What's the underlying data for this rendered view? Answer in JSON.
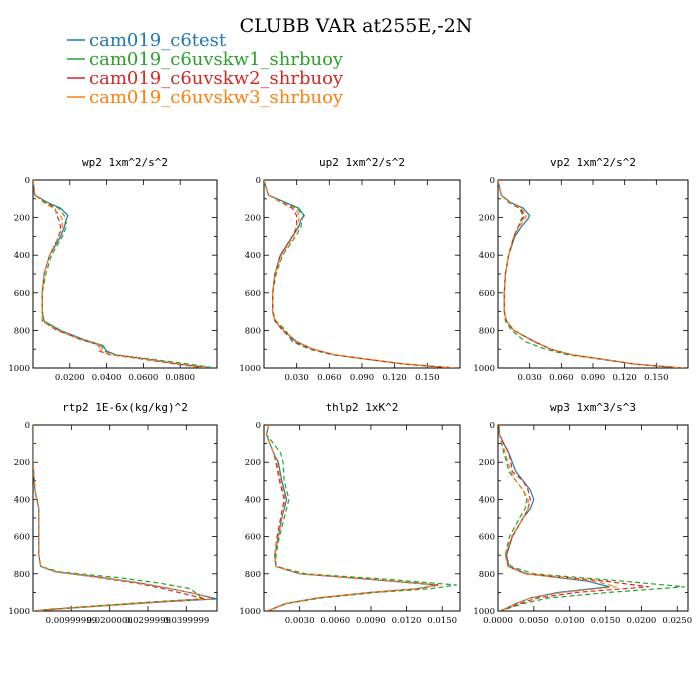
{
  "figure": {
    "title": "CLUBB VAR at255E,-2N",
    "series_colors": [
      "#1f77b4",
      "#2ca02c",
      "#d62728",
      "#ff7f0e"
    ],
    "series_dash": [
      "",
      "5,3",
      "5,3",
      "5,3"
    ]
  },
  "chart_data": [
    {
      "type": "line",
      "title": "wp2  1xm^2/s^2",
      "xlim": [
        0,
        0.1
      ],
      "ylim": [
        0,
        1000
      ],
      "y_inverted": true,
      "xticks": [
        0.02,
        0.04,
        0.06,
        0.08
      ],
      "xtick_labels": [
        "0.0200",
        "0.0400",
        "0.0600",
        "0.0800"
      ],
      "yticks": [
        0,
        200,
        400,
        600,
        800,
        1000
      ],
      "ytick_labels": [
        "0",
        "200",
        "400",
        "600",
        "800",
        "1000"
      ],
      "y": [
        0,
        80,
        120,
        150,
        190,
        210,
        250,
        300,
        400,
        500,
        600,
        700,
        750,
        800,
        850,
        880,
        910,
        930,
        950,
        980,
        1000
      ],
      "series": [
        {
          "name": "cam019_c6test",
          "values": [
            0.0,
            0.001,
            0.008,
            0.015,
            0.019,
            0.018,
            0.017,
            0.015,
            0.009,
            0.006,
            0.005,
            0.005,
            0.006,
            0.015,
            0.028,
            0.038,
            0.04,
            0.045,
            0.06,
            0.08,
            0.098
          ]
        },
        {
          "name": "cam019_c6uvskw1_shrbuoy",
          "values": [
            0.0,
            0.001,
            0.007,
            0.014,
            0.017,
            0.018,
            0.018,
            0.016,
            0.01,
            0.007,
            0.005,
            0.005,
            0.006,
            0.014,
            0.026,
            0.037,
            0.039,
            0.045,
            0.062,
            0.085,
            0.099
          ]
        },
        {
          "name": "cam019_c6uvskw2_shrbuoy",
          "values": [
            0.0,
            0.001,
            0.006,
            0.012,
            0.013,
            0.014,
            0.015,
            0.014,
            0.009,
            0.006,
            0.005,
            0.005,
            0.005,
            0.013,
            0.027,
            0.036,
            0.036,
            0.042,
            0.058,
            0.078,
            0.094
          ]
        },
        {
          "name": "cam019_c6uvskw3_shrbuoy",
          "values": [
            0.0,
            0.001,
            0.006,
            0.011,
            0.015,
            0.016,
            0.016,
            0.014,
            0.009,
            0.006,
            0.005,
            0.005,
            0.005,
            0.014,
            0.027,
            0.037,
            0.037,
            0.043,
            0.06,
            0.08,
            0.095
          ]
        }
      ]
    },
    {
      "type": "line",
      "title": "up2  1xm^2/s^2",
      "xlim": [
        0,
        0.18
      ],
      "ylim": [
        0,
        1000
      ],
      "y_inverted": true,
      "xticks": [
        0.03,
        0.06,
        0.09,
        0.12,
        0.15
      ],
      "xtick_labels": [
        "0.030",
        "0.060",
        "0.090",
        "0.120",
        "0.150"
      ],
      "yticks": [
        0,
        200,
        400,
        600,
        800,
        1000
      ],
      "ytick_labels": [
        "0",
        "200",
        "400",
        "600",
        "800",
        "1000"
      ],
      "y": [
        0,
        80,
        120,
        150,
        190,
        210,
        250,
        300,
        400,
        500,
        600,
        700,
        750,
        800,
        860,
        900,
        930,
        950,
        980,
        1000
      ],
      "series": [
        {
          "name": "cam019_c6test",
          "values": [
            0.0,
            0.004,
            0.02,
            0.032,
            0.037,
            0.034,
            0.032,
            0.026,
            0.015,
            0.01,
            0.008,
            0.008,
            0.01,
            0.018,
            0.03,
            0.045,
            0.065,
            0.09,
            0.13,
            0.175
          ]
        },
        {
          "name": "cam019_c6uvskw1_shrbuoy",
          "values": [
            0.0,
            0.004,
            0.018,
            0.03,
            0.036,
            0.035,
            0.034,
            0.029,
            0.017,
            0.011,
            0.008,
            0.008,
            0.011,
            0.02,
            0.026,
            0.042,
            0.063,
            0.09,
            0.13,
            0.175
          ]
        },
        {
          "name": "cam019_c6uvskw2_shrbuoy",
          "values": [
            0.0,
            0.004,
            0.016,
            0.026,
            0.03,
            0.03,
            0.03,
            0.026,
            0.015,
            0.01,
            0.008,
            0.008,
            0.01,
            0.017,
            0.028,
            0.044,
            0.064,
            0.09,
            0.13,
            0.175
          ]
        },
        {
          "name": "cam019_c6uvskw3_shrbuoy",
          "values": [
            0.0,
            0.004,
            0.017,
            0.028,
            0.033,
            0.032,
            0.031,
            0.027,
            0.016,
            0.01,
            0.008,
            0.008,
            0.01,
            0.018,
            0.029,
            0.045,
            0.065,
            0.09,
            0.13,
            0.175
          ]
        }
      ]
    },
    {
      "type": "line",
      "title": "vp2  1xm^2/s^2",
      "xlim": [
        0,
        0.18
      ],
      "ylim": [
        0,
        1000
      ],
      "y_inverted": true,
      "xticks": [
        0.03,
        0.06,
        0.09,
        0.12,
        0.15
      ],
      "xtick_labels": [
        "0.030",
        "0.060",
        "0.090",
        "0.120",
        "0.150"
      ],
      "yticks": [
        0,
        200,
        400,
        600,
        800,
        1000
      ],
      "ytick_labels": [
        "0",
        "200",
        "400",
        "600",
        "800",
        "1000"
      ],
      "y": [
        0,
        80,
        120,
        150,
        190,
        210,
        250,
        300,
        400,
        500,
        600,
        700,
        750,
        800,
        860,
        900,
        930,
        950,
        980,
        1000
      ],
      "series": [
        {
          "name": "cam019_c6test",
          "values": [
            0.0,
            0.003,
            0.012,
            0.024,
            0.03,
            0.028,
            0.022,
            0.016,
            0.01,
            0.007,
            0.006,
            0.006,
            0.008,
            0.015,
            0.035,
            0.05,
            0.07,
            0.095,
            0.13,
            0.175
          ]
        },
        {
          "name": "cam019_c6uvskw1_shrbuoy",
          "values": [
            0.0,
            0.003,
            0.01,
            0.02,
            0.024,
            0.022,
            0.019,
            0.015,
            0.01,
            0.007,
            0.006,
            0.006,
            0.007,
            0.013,
            0.026,
            0.045,
            0.066,
            0.093,
            0.13,
            0.175
          ]
        },
        {
          "name": "cam019_c6uvskw2_shrbuoy",
          "values": [
            0.0,
            0.003,
            0.011,
            0.021,
            0.025,
            0.023,
            0.019,
            0.015,
            0.01,
            0.007,
            0.006,
            0.006,
            0.008,
            0.015,
            0.034,
            0.05,
            0.07,
            0.095,
            0.13,
            0.175
          ]
        },
        {
          "name": "cam019_c6uvskw3_shrbuoy",
          "values": [
            0.0,
            0.003,
            0.011,
            0.022,
            0.027,
            0.025,
            0.02,
            0.015,
            0.01,
            0.007,
            0.006,
            0.006,
            0.008,
            0.015,
            0.034,
            0.05,
            0.07,
            0.095,
            0.13,
            0.175
          ]
        }
      ]
    },
    {
      "type": "line",
      "title": "rtp2  1E-6x(kg/kg)^2",
      "xlim": [
        0,
        4.8e-05
      ],
      "ylim": [
        0,
        1000
      ],
      "y_inverted": true,
      "xticks": [
        1e-05,
        2e-05,
        3e-05,
        4e-05
      ],
      "xtick_labels": [
        "0.00999999",
        "0.0200000",
        "0.0299999",
        "0.0399999"
      ],
      "yticks": [
        0,
        200,
        400,
        600,
        800,
        1000
      ],
      "ytick_labels": [
        "0",
        "200",
        "400",
        "600",
        "800",
        "1000"
      ],
      "y": [
        0,
        200,
        350,
        400,
        450,
        500,
        600,
        700,
        760,
        790,
        820,
        850,
        880,
        910,
        935,
        950,
        970,
        990,
        1000
      ],
      "series": [
        {
          "name": "cam019_c6test",
          "values": [
            0.0,
            0.0,
            5e-07,
            1e-06,
            1.5e-06,
            1.5e-06,
            1.5e-06,
            1.5e-06,
            2e-06,
            6e-06,
            1.8e-05,
            2.8e-05,
            3.6e-05,
            4.3e-05,
            4.8e-05,
            3.5e-05,
            2e-05,
            6e-06,
            0.0
          ]
        },
        {
          "name": "cam019_c6uvskw1_shrbuoy",
          "values": [
            0.0,
            0.0,
            5e-07,
            1e-06,
            1.5e-06,
            1.5e-06,
            1.5e-06,
            1.5e-06,
            2e-06,
            7e-06,
            2.2e-05,
            3.3e-05,
            4.1e-05,
            4.3e-05,
            4.4e-05,
            3.2e-05,
            1.8e-05,
            5e-06,
            0.0
          ]
        },
        {
          "name": "cam019_c6uvskw2_shrbuoy",
          "values": [
            0.0,
            0.0,
            5e-07,
            1e-06,
            1.5e-06,
            1.5e-06,
            1.5e-06,
            1.5e-06,
            2e-06,
            6e-06,
            1.7e-05,
            2.7e-05,
            3.4e-05,
            4e-05,
            4.5e-05,
            3.3e-05,
            1.9e-05,
            5e-06,
            0.0
          ]
        },
        {
          "name": "cam019_c6uvskw3_shrbuoy",
          "values": [
            0.0,
            0.0,
            5e-07,
            1e-06,
            1.5e-06,
            1.5e-06,
            1.5e-06,
            1.5e-06,
            2e-06,
            6e-06,
            1.8e-05,
            2.8e-05,
            3.6e-05,
            4.3e-05,
            4.7e-05,
            3.4e-05,
            2e-05,
            6e-06,
            0.0
          ]
        }
      ]
    },
    {
      "type": "line",
      "title": "thlp2  1xK^2",
      "xlim": [
        0,
        0.0165
      ],
      "ylim": [
        0,
        1000
      ],
      "y_inverted": true,
      "xticks": [
        0.003,
        0.006,
        0.009,
        0.012,
        0.015
      ],
      "xtick_labels": [
        "0.0030",
        "0.0060",
        "0.0090",
        "0.0120",
        "0.0150"
      ],
      "yticks": [
        0,
        200,
        400,
        600,
        800,
        1000
      ],
      "ytick_labels": [
        "0",
        "200",
        "400",
        "600",
        "800",
        "1000"
      ],
      "y": [
        0,
        50,
        100,
        150,
        200,
        300,
        400,
        500,
        600,
        700,
        760,
        800,
        830,
        860,
        880,
        900,
        930,
        960,
        1000
      ],
      "series": [
        {
          "name": "cam019_c6test",
          "values": [
            0.0004,
            0.0002,
            0.0005,
            0.0008,
            0.0012,
            0.0015,
            0.0019,
            0.0015,
            0.0012,
            0.0009,
            0.001,
            0.003,
            0.009,
            0.0145,
            0.013,
            0.009,
            0.0045,
            0.0018,
            0.0003
          ]
        },
        {
          "name": "cam019_c6uvskw1_shrbuoy",
          "values": [
            0.0004,
            0.0002,
            0.0008,
            0.0014,
            0.0016,
            0.0017,
            0.0021,
            0.0017,
            0.0013,
            0.001,
            0.001,
            0.0035,
            0.0105,
            0.0162,
            0.014,
            0.0095,
            0.0048,
            0.0019,
            0.0003
          ]
        },
        {
          "name": "cam019_c6uvskw2_shrbuoy",
          "values": [
            0.0004,
            0.0002,
            0.0005,
            0.0008,
            0.001,
            0.0013,
            0.0017,
            0.0014,
            0.0011,
            0.0009,
            0.001,
            0.003,
            0.009,
            0.0148,
            0.0128,
            0.009,
            0.0045,
            0.0018,
            0.0003
          ]
        },
        {
          "name": "cam019_c6uvskw3_shrbuoy",
          "values": [
            0.0004,
            0.0002,
            0.0005,
            0.0008,
            0.0011,
            0.0014,
            0.0018,
            0.0015,
            0.0012,
            0.0009,
            0.001,
            0.003,
            0.0092,
            0.0145,
            0.013,
            0.009,
            0.0045,
            0.0018,
            0.0003
          ]
        }
      ]
    },
    {
      "type": "line",
      "title": "wp3  1xm^3/s^3",
      "xlim": [
        0,
        0.0265
      ],
      "ylim": [
        0,
        1000
      ],
      "y_inverted": true,
      "xticks": [
        0,
        0.005,
        0.01,
        0.015,
        0.02,
        0.025
      ],
      "xtick_labels": [
        "0.0000",
        "0.0050",
        "0.0100",
        "0.0150",
        "0.0200",
        "0.0250"
      ],
      "yticks": [
        0,
        200,
        400,
        600,
        800,
        1000
      ],
      "ytick_labels": [
        "0",
        "200",
        "400",
        "600",
        "800",
        "1000"
      ],
      "y": [
        0,
        50,
        100,
        150,
        200,
        250,
        300,
        350,
        400,
        450,
        500,
        600,
        700,
        760,
        800,
        840,
        870,
        900,
        930,
        960,
        1000
      ],
      "series": [
        {
          "name": "cam019_c6test",
          "values": [
            0.0002,
            0.0002,
            0.0008,
            0.0015,
            0.002,
            0.0025,
            0.0035,
            0.0045,
            0.005,
            0.0045,
            0.0035,
            0.002,
            0.0012,
            0.0015,
            0.004,
            0.0125,
            0.0155,
            0.0085,
            0.0045,
            0.0025,
            0.0003
          ]
        },
        {
          "name": "cam019_c6uvskw1_shrbuoy",
          "values": [
            0.0002,
            0.0002,
            0.0005,
            0.0008,
            0.0012,
            0.0015,
            0.0025,
            0.0035,
            0.004,
            0.0038,
            0.003,
            0.0016,
            0.001,
            0.0018,
            0.005,
            0.0175,
            0.026,
            0.0155,
            0.007,
            0.0035,
            0.0003
          ]
        },
        {
          "name": "cam019_c6uvskw2_shrbuoy",
          "values": [
            0.0002,
            0.0002,
            0.0008,
            0.0015,
            0.0018,
            0.002,
            0.0035,
            0.0042,
            0.0045,
            0.0042,
            0.0035,
            0.002,
            0.0011,
            0.0014,
            0.0038,
            0.015,
            0.021,
            0.011,
            0.0055,
            0.003,
            0.0003
          ]
        },
        {
          "name": "cam019_c6uvskw3_shrbuoy",
          "values": [
            0.0002,
            0.0002,
            0.0006,
            0.001,
            0.0014,
            0.0018,
            0.0025,
            0.0035,
            0.0042,
            0.0042,
            0.0035,
            0.0019,
            0.001,
            0.0014,
            0.0038,
            0.0135,
            0.0165,
            0.009,
            0.0045,
            0.0025,
            0.0003
          ]
        }
      ]
    }
  ]
}
